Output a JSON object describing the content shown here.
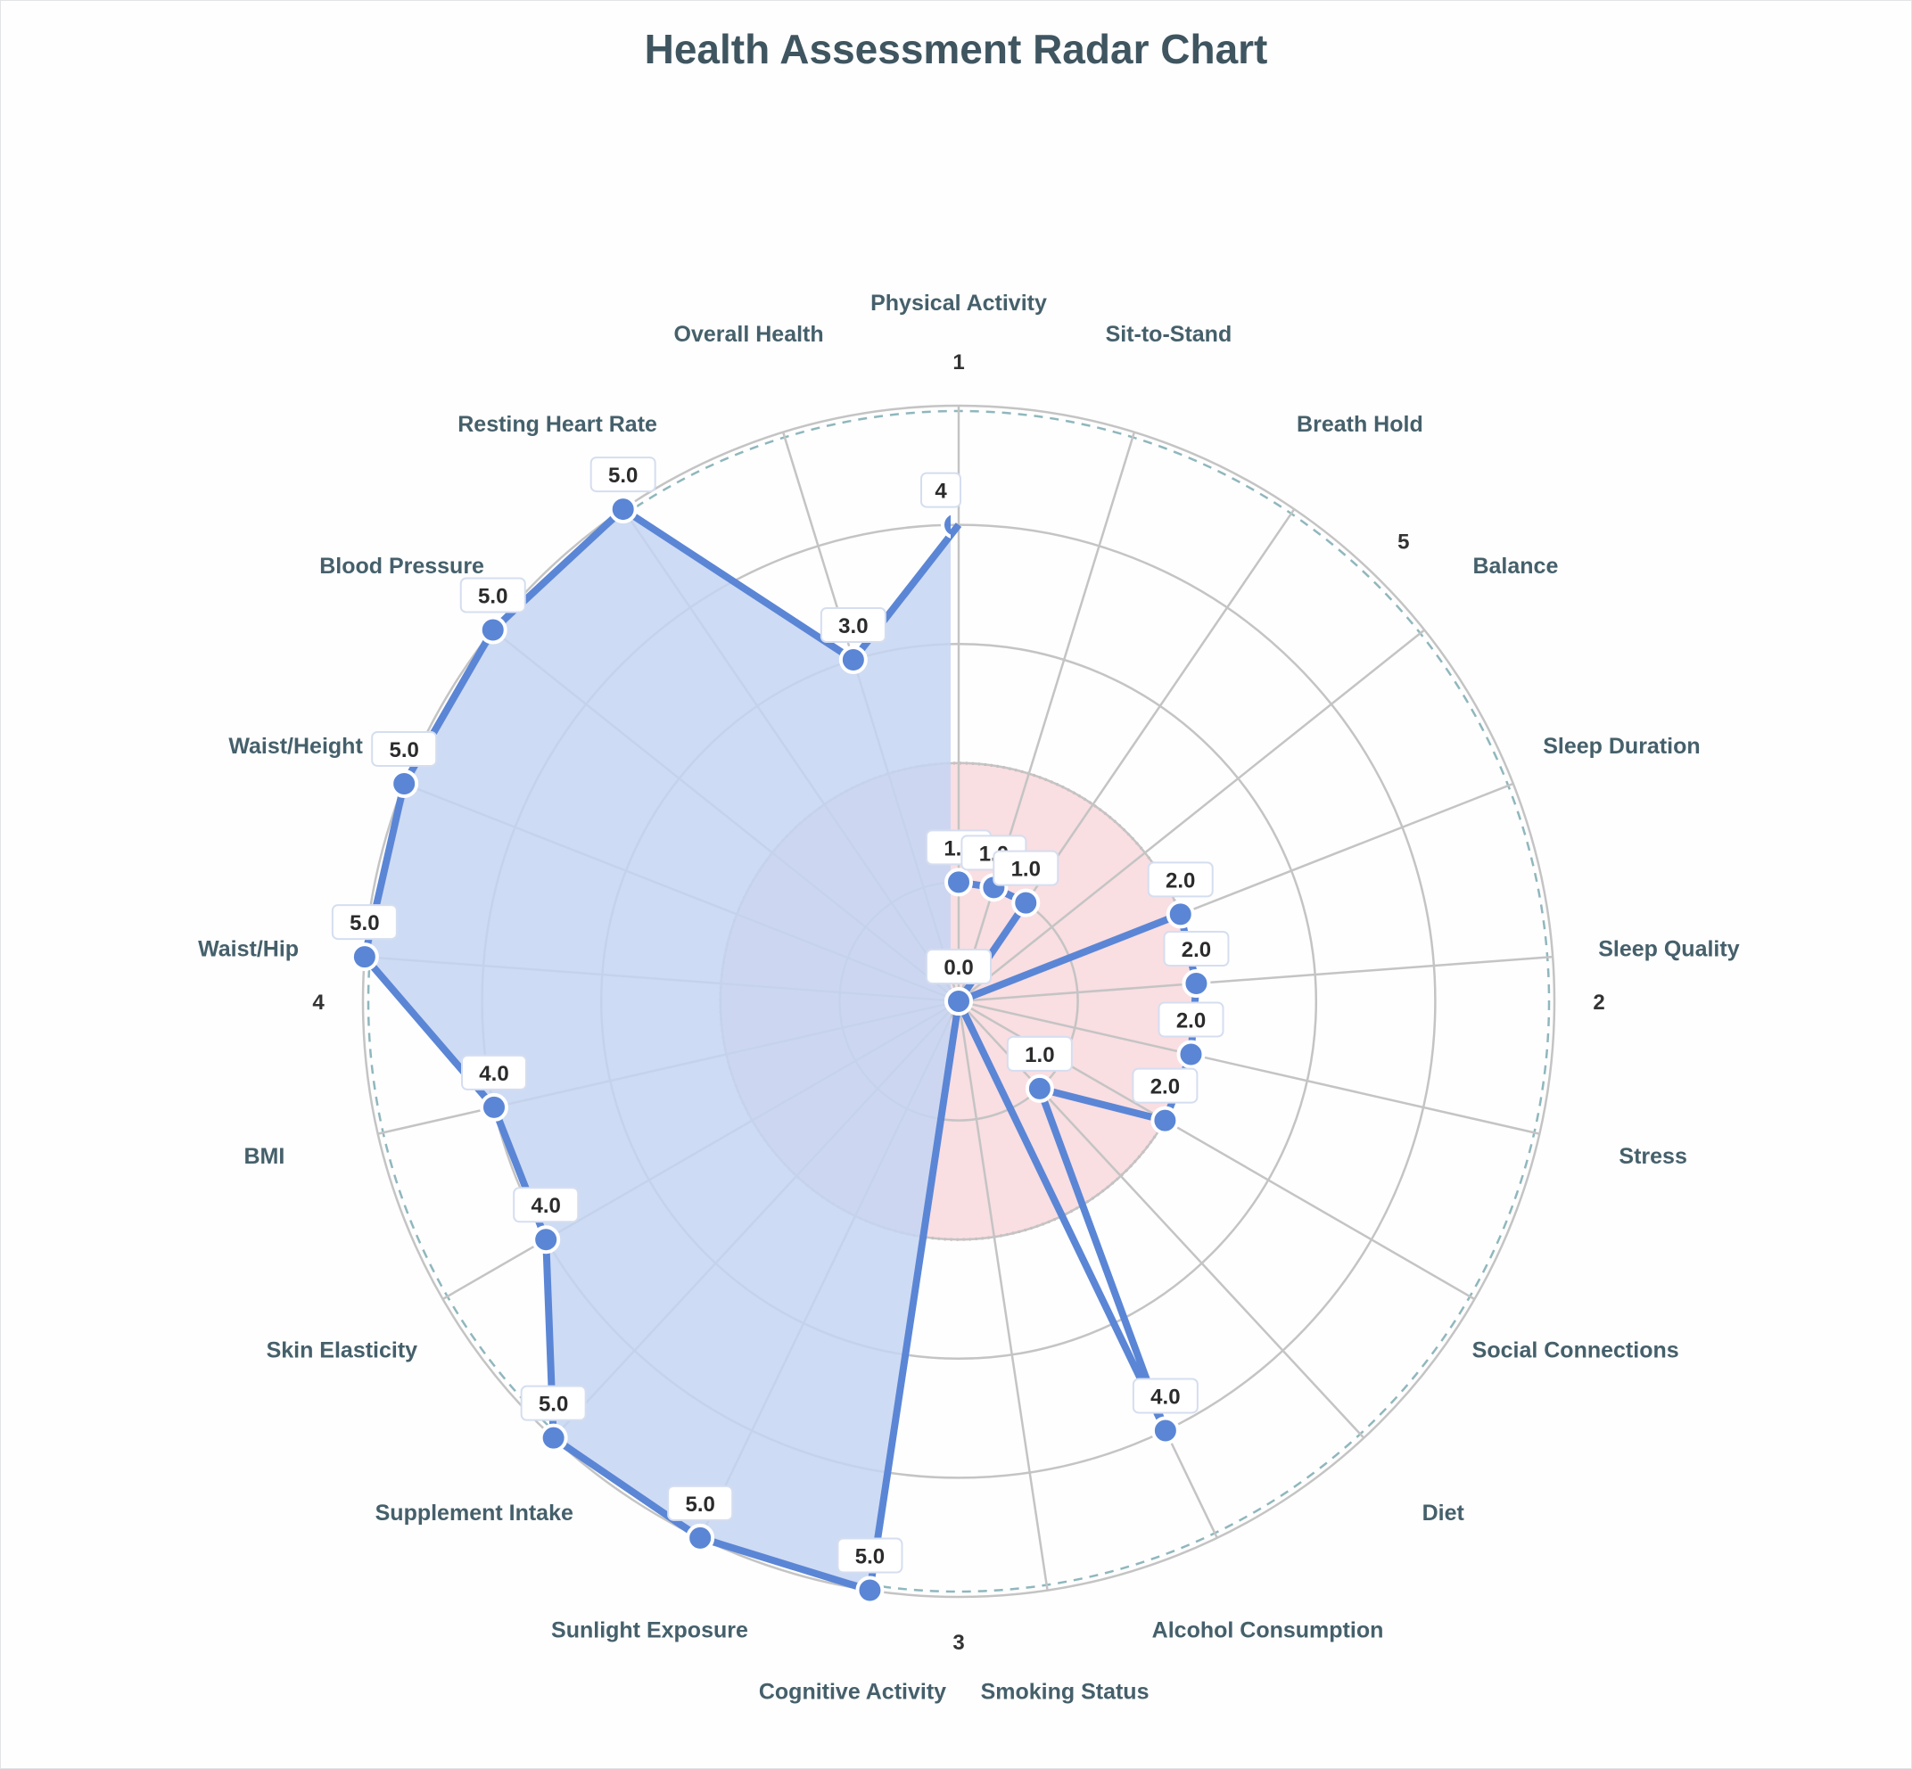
{
  "title": "Health Assessment Radar Chart",
  "chart_data": {
    "type": "radar",
    "title": "Health Assessment Radar Chart",
    "categories": [
      "Physical Activity",
      "Sit-to-Stand",
      "Breath Hold",
      "Balance",
      "Sleep Duration",
      "Sleep Quality",
      "Stress",
      "Social Connections",
      "Diet",
      "Alcohol Consumption",
      "Smoking Status",
      "Cognitive Activity",
      "Sunlight Exposure",
      "Supplement Intake",
      "Skin Elasticity",
      "BMI",
      "Waist/Hip",
      "Waist/Height",
      "Blood Pressure",
      "Resting Heart Rate",
      "Overall Health"
    ],
    "series": [
      {
        "name": "Score",
        "values": [
          1.0,
          1.0,
          1.0,
          0.0,
          2.0,
          2.0,
          2.0,
          2.0,
          1.0,
          4.0,
          0.0,
          5.0,
          5.0,
          5.0,
          4.0,
          4.0,
          5.0,
          5.0,
          5.0,
          5.0,
          3.0
        ],
        "color": "#5b86d6",
        "fill": "#c5d5f2"
      }
    ],
    "extra_points": [
      {
        "category": "Physical Activity",
        "value": 4.0,
        "label": "4"
      }
    ],
    "value_labels": [
      "1.0",
      "1.0",
      "1.0",
      "0.0",
      "2.0",
      "2.0",
      "2.0",
      "2.0",
      "1.0",
      "4.0",
      "",
      "5.0",
      "5.0",
      "5.0",
      "4.0",
      "4.0",
      "5.0",
      "5.0",
      "5.0",
      "5.0",
      "3.0"
    ],
    "radial_range": [
      0,
      5
    ],
    "rings": [
      1,
      2,
      3,
      4,
      5
    ],
    "reference_band": {
      "value": 2,
      "color": "#f7d3d8",
      "border": "#c9909a"
    },
    "angular_tick_labels": [
      {
        "text": "1",
        "angle": 0
      },
      {
        "text": "5",
        "angle": 44
      },
      {
        "text": "2",
        "angle": 90
      },
      {
        "text": "3",
        "angle": 180
      },
      {
        "text": "4",
        "angle": 270
      }
    ],
    "grid": true,
    "legend": "none"
  },
  "colors": {
    "title": "#3f5560",
    "axis_label": "#45606b",
    "grid": "#c4c4c4",
    "outer_dash": "#8fb7bd",
    "trace": "#5b86d6",
    "fill": "#c5d5f2",
    "reference": "#f7d3d8"
  }
}
